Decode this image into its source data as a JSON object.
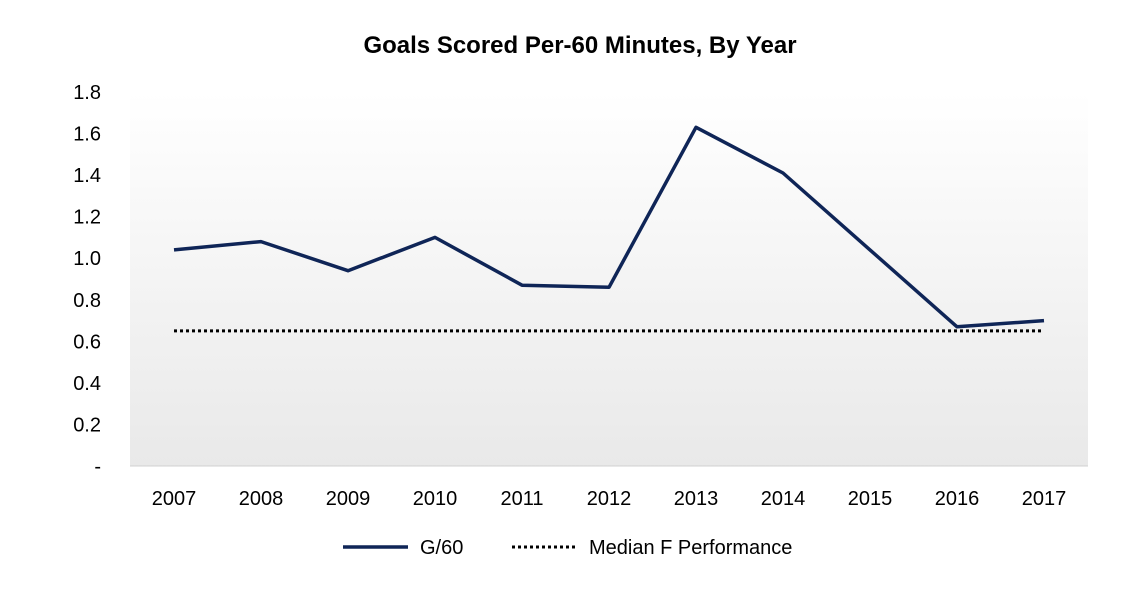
{
  "chart_data": {
    "type": "line",
    "title": "Goals Scored Per-60 Minutes, By Year",
    "xlabel": "",
    "ylabel": "",
    "categories": [
      "2007",
      "2008",
      "2009",
      "2010",
      "2011",
      "2012",
      "2013",
      "2014",
      "2015",
      "2016",
      "2017"
    ],
    "y_ticks": [
      {
        "value": 0,
        "label": "-"
      },
      {
        "value": 0.2,
        "label": "0.2"
      },
      {
        "value": 0.4,
        "label": "0.4"
      },
      {
        "value": 0.6,
        "label": "0.6"
      },
      {
        "value": 0.8,
        "label": "0.8"
      },
      {
        "value": 1.0,
        "label": "1.0"
      },
      {
        "value": 1.2,
        "label": "1.2"
      },
      {
        "value": 1.4,
        "label": "1.4"
      },
      {
        "value": 1.6,
        "label": "1.6"
      },
      {
        "value": 1.8,
        "label": "1.8"
      }
    ],
    "ylim": [
      0,
      1.8
    ],
    "grid": false,
    "legend_position": "bottom",
    "series": [
      {
        "name": "G/60",
        "style": "solid",
        "color": "#0f2557",
        "values": [
          1.04,
          1.08,
          0.94,
          1.1,
          0.87,
          0.86,
          1.63,
          1.41,
          1.04,
          0.67,
          0.7
        ]
      },
      {
        "name": "Median F Performance",
        "style": "dotted",
        "color": "#000000",
        "values": [
          0.65,
          0.65,
          0.65,
          0.65,
          0.65,
          0.65,
          0.65,
          0.65,
          0.65,
          0.65,
          0.65
        ]
      }
    ]
  },
  "colors": {
    "plot_background_top": "#ffffff",
    "plot_background_bottom": "#e9e9e9",
    "axis": "#d0d0d0",
    "text": "#000000"
  }
}
